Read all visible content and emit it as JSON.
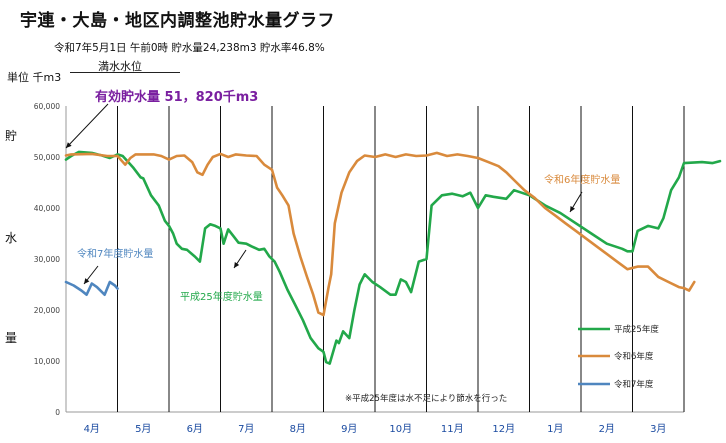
{
  "header": {
    "title": "宇連・大島・地区内調整池貯水量グラフ",
    "status": "令和7年5月1日 午前0時 貯水量24,238m3 貯水率46.8%",
    "unit": "単位 千m3",
    "full_level_label": "満水水位",
    "effective_capacity": "有効貯水量 51，820千m3"
  },
  "y_axis_chars": [
    "貯",
    "水",
    "量"
  ],
  "note": "※平成25年度は水不足により節水を行った",
  "colors": {
    "h25": "#22a84a",
    "r6": "#d98a3c",
    "r7": "#4f86bf",
    "effective": "#7a1fa0",
    "month": "#1a4aa0"
  },
  "chart_data": {
    "type": "line",
    "ylim": [
      0,
      60000
    ],
    "yticks": [
      0,
      10000,
      20000,
      30000,
      40000,
      50000,
      60000
    ],
    "ytick_labels": [
      "0",
      "10,000",
      "20,000",
      "30,000",
      "40,000",
      "50,000",
      "60,000"
    ],
    "months": [
      "4月",
      "5月",
      "6月",
      "7月",
      "8月",
      "9月",
      "10月",
      "11月",
      "12月",
      "1月",
      "2月",
      "3月"
    ],
    "x_unit": "month index from start of April (0 = 4月1日, 12 = 3月末)",
    "grid": "vertical month lines",
    "legend_position": "bottom-right",
    "series": [
      {
        "name": "平成25年度",
        "key": "h25",
        "points": [
          [
            0,
            49500
          ],
          [
            0.1,
            50200
          ],
          [
            0.25,
            51000
          ],
          [
            0.5,
            50800
          ],
          [
            0.7,
            50300
          ],
          [
            0.85,
            49800
          ],
          [
            1.0,
            50500
          ],
          [
            1.1,
            50200
          ],
          [
            1.3,
            48000
          ],
          [
            1.45,
            46000
          ],
          [
            1.5,
            45800
          ],
          [
            1.65,
            42500
          ],
          [
            1.8,
            40500
          ],
          [
            1.92,
            37500
          ],
          [
            2.0,
            36500
          ],
          [
            2.08,
            35000
          ],
          [
            2.15,
            33000
          ],
          [
            2.25,
            32000
          ],
          [
            2.35,
            31800
          ],
          [
            2.5,
            30500
          ],
          [
            2.6,
            29500
          ],
          [
            2.7,
            36000
          ],
          [
            2.8,
            36800
          ],
          [
            2.9,
            36500
          ],
          [
            3.0,
            36000
          ],
          [
            3.06,
            33000
          ],
          [
            3.15,
            35800
          ],
          [
            3.25,
            34500
          ],
          [
            3.35,
            33200
          ],
          [
            3.5,
            33000
          ],
          [
            3.6,
            32500
          ],
          [
            3.75,
            31800
          ],
          [
            3.85,
            32000
          ],
          [
            3.95,
            30500
          ],
          [
            4.05,
            29500
          ],
          [
            4.15,
            27500
          ],
          [
            4.3,
            24000
          ],
          [
            4.45,
            21000
          ],
          [
            4.6,
            18000
          ],
          [
            4.75,
            14500
          ],
          [
            4.9,
            12500
          ],
          [
            5.0,
            11800
          ],
          [
            5.05,
            9800
          ],
          [
            5.12,
            9500
          ],
          [
            5.25,
            14000
          ],
          [
            5.3,
            13500
          ],
          [
            5.38,
            15800
          ],
          [
            5.5,
            14500
          ],
          [
            5.6,
            20000
          ],
          [
            5.7,
            25000
          ],
          [
            5.8,
            27000
          ],
          [
            5.95,
            25500
          ],
          [
            6.1,
            24500
          ],
          [
            6.3,
            23000
          ],
          [
            6.4,
            23000
          ],
          [
            6.5,
            26000
          ],
          [
            6.6,
            25500
          ],
          [
            6.7,
            23500
          ],
          [
            6.85,
            29500
          ],
          [
            7.0,
            30000
          ],
          [
            7.1,
            40500
          ],
          [
            7.3,
            42500
          ],
          [
            7.5,
            42800
          ],
          [
            7.7,
            42300
          ],
          [
            7.85,
            43000
          ],
          [
            8.0,
            40000
          ],
          [
            8.15,
            42500
          ],
          [
            8.3,
            42200
          ],
          [
            8.55,
            41800
          ],
          [
            8.7,
            43500
          ],
          [
            9.0,
            42500
          ],
          [
            9.3,
            40500
          ],
          [
            9.6,
            39000
          ],
          [
            9.9,
            37000
          ],
          [
            10.2,
            35000
          ],
          [
            10.5,
            33000
          ],
          [
            10.8,
            32000
          ],
          [
            10.9,
            31500
          ],
          [
            11.0,
            31500
          ],
          [
            11.1,
            35500
          ],
          [
            11.3,
            36500
          ],
          [
            11.5,
            36000
          ],
          [
            11.6,
            38000
          ],
          [
            11.75,
            43500
          ],
          [
            11.9,
            46000
          ],
          [
            12.0,
            48800
          ],
          [
            12.35,
            49000
          ],
          [
            12.55,
            48800
          ],
          [
            12.7,
            49200
          ]
        ]
      },
      {
        "name": "令和6年度",
        "key": "r6",
        "points": [
          [
            0,
            50300
          ],
          [
            0.1,
            50500
          ],
          [
            0.5,
            50600
          ],
          [
            0.8,
            50200
          ],
          [
            1.0,
            50200
          ],
          [
            1.15,
            48500
          ],
          [
            1.25,
            49800
          ],
          [
            1.35,
            50500
          ],
          [
            1.7,
            50500
          ],
          [
            1.85,
            50200
          ],
          [
            2.0,
            49500
          ],
          [
            2.15,
            50200
          ],
          [
            2.3,
            50300
          ],
          [
            2.45,
            49000
          ],
          [
            2.55,
            47000
          ],
          [
            2.65,
            46500
          ],
          [
            2.75,
            48500
          ],
          [
            2.85,
            50000
          ],
          [
            3.0,
            50600
          ],
          [
            3.15,
            50000
          ],
          [
            3.3,
            50500
          ],
          [
            3.5,
            50300
          ],
          [
            3.7,
            50200
          ],
          [
            3.85,
            48500
          ],
          [
            4.0,
            47500
          ],
          [
            4.1,
            44000
          ],
          [
            4.2,
            42500
          ],
          [
            4.32,
            40500
          ],
          [
            4.42,
            35000
          ],
          [
            4.55,
            30500
          ],
          [
            4.68,
            26500
          ],
          [
            4.8,
            23000
          ],
          [
            4.9,
            19500
          ],
          [
            5.0,
            19000
          ],
          [
            5.1,
            24500
          ],
          [
            5.15,
            27000
          ],
          [
            5.22,
            37000
          ],
          [
            5.35,
            43000
          ],
          [
            5.5,
            47000
          ],
          [
            5.65,
            49200
          ],
          [
            5.8,
            50300
          ],
          [
            6.0,
            50000
          ],
          [
            6.2,
            50500
          ],
          [
            6.4,
            50000
          ],
          [
            6.6,
            50500
          ],
          [
            6.8,
            50200
          ],
          [
            7.0,
            50300
          ],
          [
            7.2,
            50800
          ],
          [
            7.4,
            50200
          ],
          [
            7.6,
            50500
          ],
          [
            7.8,
            50200
          ],
          [
            8.0,
            49800
          ],
          [
            8.2,
            49000
          ],
          [
            8.4,
            48200
          ],
          [
            8.55,
            47000
          ],
          [
            8.7,
            45500
          ],
          [
            8.9,
            43500
          ],
          [
            9.1,
            42000
          ],
          [
            9.3,
            40000
          ],
          [
            9.5,
            38500
          ],
          [
            9.7,
            37000
          ],
          [
            9.9,
            35500
          ],
          [
            10.1,
            34000
          ],
          [
            10.3,
            32500
          ],
          [
            10.5,
            31000
          ],
          [
            10.7,
            29500
          ],
          [
            10.9,
            28000
          ],
          [
            11.1,
            28500
          ],
          [
            11.3,
            28500
          ],
          [
            11.5,
            26500
          ],
          [
            11.7,
            25500
          ],
          [
            11.9,
            24500
          ],
          [
            12.0,
            24300
          ],
          [
            12.1,
            23800
          ],
          [
            12.2,
            25500
          ]
        ]
      },
      {
        "name": "令和7年度",
        "key": "r7",
        "points": [
          [
            0,
            25500
          ],
          [
            0.15,
            24800
          ],
          [
            0.3,
            23800
          ],
          [
            0.4,
            23000
          ],
          [
            0.5,
            25200
          ],
          [
            0.6,
            24500
          ],
          [
            0.75,
            23000
          ],
          [
            0.85,
            25500
          ],
          [
            0.95,
            24800
          ],
          [
            1.0,
            24200
          ]
        ]
      }
    ],
    "annotations": [
      "満水水位",
      "令和7年度貯水量",
      "平成25年度貯水量",
      "令和6年度貯水量"
    ]
  }
}
